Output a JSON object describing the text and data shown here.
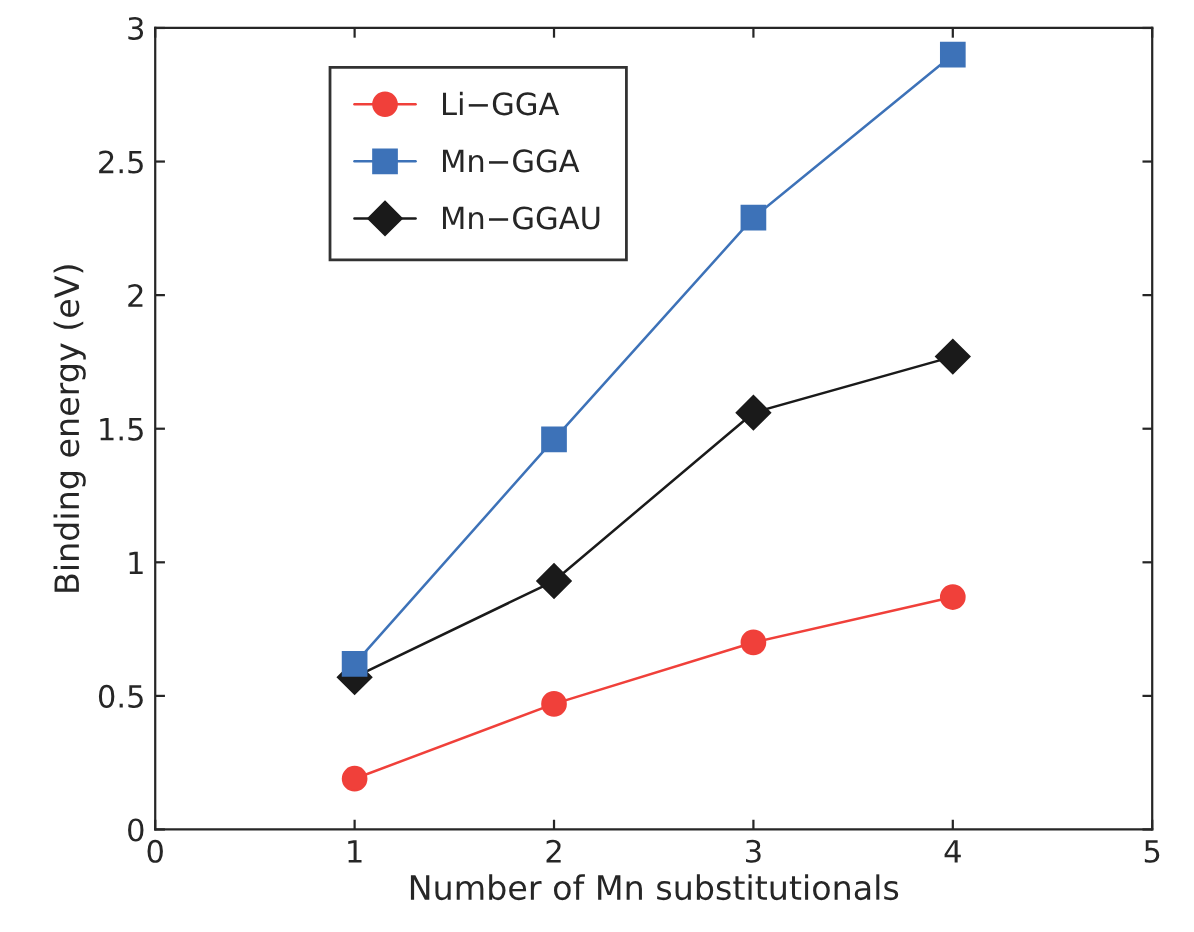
{
  "chart_data": {
    "type": "line",
    "xlabel": "Number of Mn substitutionals",
    "ylabel": "Binding energy (eV)",
    "x": [
      1,
      2,
      3,
      4
    ],
    "series": [
      {
        "name": "Li−GGA",
        "color": "#f0403a",
        "marker": "circle",
        "values": [
          0.19,
          0.47,
          0.7,
          0.87
        ]
      },
      {
        "name": "Mn−GGA",
        "color": "#3d72b8",
        "marker": "square",
        "values": [
          0.62,
          1.46,
          2.29,
          2.9
        ]
      },
      {
        "name": "Mn−GGAU",
        "color": "#1a1a1a",
        "marker": "diamond",
        "values": [
          0.57,
          0.93,
          1.56,
          1.77
        ]
      }
    ],
    "xlim": [
      0,
      5
    ],
    "xticks": [
      0,
      1,
      2,
      3,
      4,
      5
    ],
    "ylim": [
      0,
      3
    ],
    "yticks": [
      0,
      0.5,
      1,
      1.5,
      2,
      2.5,
      3
    ],
    "grid": false,
    "legend": "top left",
    "line_style": "solid"
  }
}
